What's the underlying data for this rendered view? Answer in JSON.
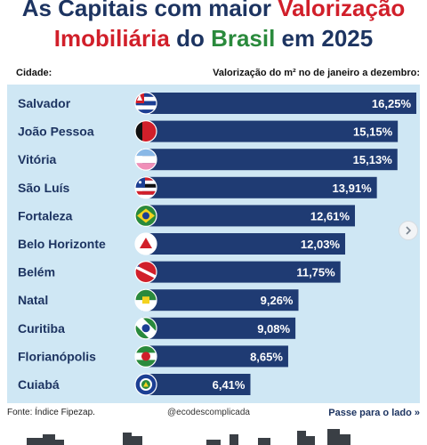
{
  "title": {
    "line1_part1": "As Capitais com maior ",
    "line1_part2": "Valorização",
    "line2_part1": "Imobiliária",
    "line2_part2": " do ",
    "line2_part3": "Brasil",
    "line2_part4": " em 2025"
  },
  "header": {
    "left": "Cidade:",
    "right": "Valorização do m² no de janeiro a dezembro:"
  },
  "chart_data": {
    "type": "bar",
    "orientation": "horizontal",
    "categories": [
      "Salvador",
      "João Pessoa",
      "Vitória",
      "São Luís",
      "Fortaleza",
      "Belo Horizonte",
      "Belém",
      "Natal",
      "Curitiba",
      "Florianópolis",
      "Cuiabá"
    ],
    "values": [
      16.25,
      15.15,
      15.13,
      13.91,
      12.61,
      12.03,
      11.75,
      9.26,
      9.08,
      8.65,
      6.41
    ],
    "labels": [
      "16,25%",
      "15,15%",
      "15,13%",
      "13,91%",
      "12,61%",
      "12,03%",
      "11,75%",
      "9,26%",
      "9,08%",
      "8,65%",
      "6,41%"
    ],
    "flags": [
      "bahia-flag-icon",
      "paraiba-flag-icon",
      "espirito-santo-flag-icon",
      "maranhao-flag-icon",
      "ceara-flag-icon",
      "minas-gerais-flag-icon",
      "para-flag-icon",
      "rio-grande-do-norte-flag-icon",
      "parana-flag-icon",
      "santa-catarina-flag-icon",
      "mato-grosso-flag-icon"
    ],
    "bar_color": "#1f3b73",
    "background_color": "#cfe7f4",
    "title": "",
    "xlabel": "",
    "ylabel": ""
  },
  "footer": {
    "source": "Fonte: Índice Fipezap.",
    "handle": "@ecodescomplicada",
    "swipe": "Passe para o lado",
    "swipe_icon": "double-chevron-right-icon"
  },
  "controls": {
    "next_icon": "chevron-right-icon"
  }
}
